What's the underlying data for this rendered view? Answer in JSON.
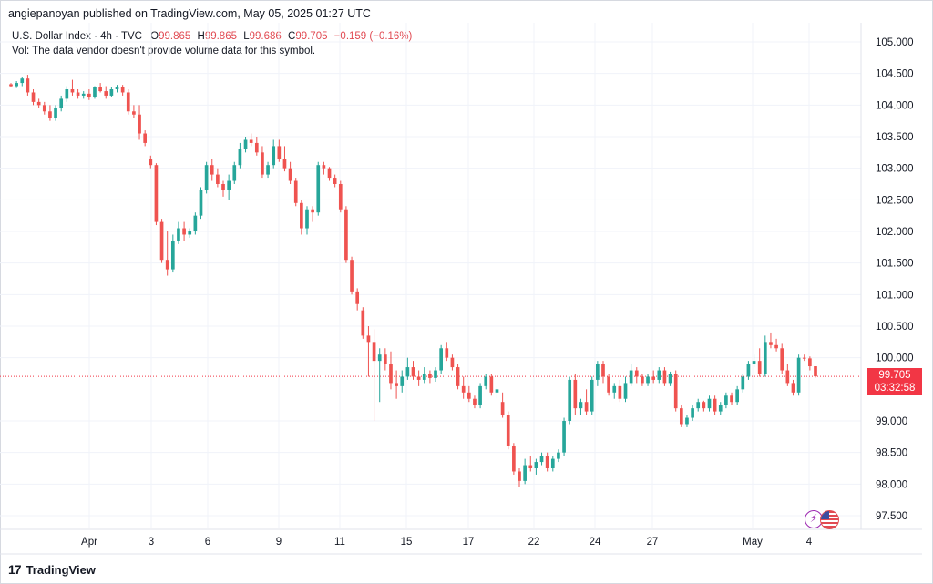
{
  "publisher_line": "angiepanoyan published on TradingView.com, May 05, 2025 01:27 UTC",
  "legend": {
    "symbol": "U.S. Dollar Index · 4h · TVC",
    "o_label": "O",
    "o_value": "99.865",
    "h_label": "H",
    "h_value": "99.865",
    "l_label": "L",
    "l_value": "99.686",
    "c_label": "C",
    "c_value": "99.705",
    "change": "−0.159 (−0.16%)",
    "vol_note": "Vol: The data vendor doesn't provide volume data for this symbol."
  },
  "price_tag": {
    "price": "99.705",
    "countdown": "03:32:58"
  },
  "footer": {
    "logo": "17",
    "brand": "TradingView"
  },
  "icons": [
    "lightning-event-icon",
    "us-flag-icon"
  ],
  "colors": {
    "up": "#26a69a",
    "down": "#ef5350",
    "grid": "#eef0f3",
    "price_line": "#f23645"
  },
  "chart_data": {
    "type": "candlestick",
    "timeframe": "4h",
    "y_axis_position": "right",
    "ylim": [
      97.4,
      105.2
    ],
    "y_ticks": [
      "105.000",
      "104.500",
      "104.000",
      "103.500",
      "103.000",
      "102.500",
      "102.000",
      "101.500",
      "101.000",
      "100.500",
      "100.000",
      "99.000",
      "98.500",
      "98.000",
      "97.500"
    ],
    "x_ticks": [
      "Apr",
      "3",
      "6",
      "9",
      "11",
      "15",
      "17",
      "22",
      "24",
      "27",
      "May",
      "4"
    ],
    "last_price": 99.705,
    "candles": [
      [
        104.33,
        104.35,
        104.28,
        104.3
      ],
      [
        104.3,
        104.38,
        104.27,
        104.35
      ],
      [
        104.35,
        104.45,
        104.3,
        104.42
      ],
      [
        104.42,
        104.48,
        104.15,
        104.2
      ],
      [
        104.2,
        104.25,
        104.0,
        104.05
      ],
      [
        104.05,
        104.1,
        103.95,
        104.0
      ],
      [
        104.0,
        104.05,
        103.85,
        103.9
      ],
      [
        103.9,
        104.0,
        103.75,
        103.8
      ],
      [
        103.8,
        104.0,
        103.75,
        103.95
      ],
      [
        103.95,
        104.15,
        103.9,
        104.1
      ],
      [
        104.1,
        104.3,
        104.05,
        104.25
      ],
      [
        104.25,
        104.4,
        104.15,
        104.2
      ],
      [
        104.2,
        104.25,
        104.1,
        104.15
      ],
      [
        104.15,
        104.22,
        104.1,
        104.18
      ],
      [
        104.18,
        104.25,
        104.08,
        104.12
      ],
      [
        104.12,
        104.3,
        104.1,
        104.28
      ],
      [
        104.28,
        104.35,
        104.2,
        104.22
      ],
      [
        104.22,
        104.3,
        104.1,
        104.15
      ],
      [
        104.15,
        104.28,
        104.12,
        104.25
      ],
      [
        104.25,
        104.32,
        104.2,
        104.28
      ],
      [
        104.28,
        104.32,
        104.15,
        104.2
      ],
      [
        104.2,
        104.25,
        103.85,
        103.9
      ],
      [
        103.9,
        104.0,
        103.8,
        103.85
      ],
      [
        103.85,
        104.0,
        103.45,
        103.55
      ],
      [
        103.55,
        103.6,
        103.35,
        103.4
      ],
      [
        103.15,
        103.2,
        103.0,
        103.05
      ],
      [
        103.05,
        103.08,
        102.1,
        102.15
      ],
      [
        102.15,
        102.2,
        101.5,
        101.55
      ],
      [
        101.55,
        102.0,
        101.3,
        101.4
      ],
      [
        101.4,
        101.95,
        101.35,
        101.85
      ],
      [
        101.85,
        102.15,
        101.8,
        102.05
      ],
      [
        102.05,
        102.15,
        101.85,
        101.95
      ],
      [
        101.95,
        102.05,
        101.9,
        102.0
      ],
      [
        102.0,
        102.3,
        101.95,
        102.25
      ],
      [
        102.25,
        102.7,
        102.2,
        102.65
      ],
      [
        102.65,
        103.1,
        102.6,
        103.05
      ],
      [
        103.05,
        103.15,
        102.8,
        102.9
      ],
      [
        102.9,
        103.0,
        102.7,
        102.75
      ],
      [
        102.75,
        102.8,
        102.55,
        102.65
      ],
      [
        102.65,
        102.9,
        102.5,
        102.8
      ],
      [
        102.8,
        103.1,
        102.75,
        103.05
      ],
      [
        103.05,
        103.4,
        103.0,
        103.3
      ],
      [
        103.3,
        103.5,
        103.25,
        103.45
      ],
      [
        103.45,
        103.55,
        103.35,
        103.4
      ],
      [
        103.4,
        103.5,
        103.2,
        103.25
      ],
      [
        103.25,
        103.35,
        102.85,
        102.9
      ],
      [
        102.9,
        103.1,
        102.85,
        103.05
      ],
      [
        103.05,
        103.45,
        103.0,
        103.35
      ],
      [
        103.35,
        103.45,
        103.1,
        103.15
      ],
      [
        103.15,
        103.35,
        102.95,
        103.0
      ],
      [
        103.0,
        103.1,
        102.75,
        102.8
      ],
      [
        102.8,
        102.85,
        102.4,
        102.45
      ],
      [
        102.45,
        102.5,
        101.95,
        102.05
      ],
      [
        102.05,
        102.4,
        101.95,
        102.35
      ],
      [
        102.35,
        102.4,
        102.15,
        102.3
      ],
      [
        102.3,
        103.1,
        102.25,
        103.05
      ],
      [
        103.05,
        103.1,
        102.9,
        103.0
      ],
      [
        103.0,
        103.02,
        102.8,
        102.85
      ],
      [
        102.85,
        102.9,
        102.7,
        102.75
      ],
      [
        102.75,
        102.8,
        102.3,
        102.35
      ],
      [
        102.35,
        102.4,
        101.5,
        101.55
      ],
      [
        101.55,
        101.6,
        101.0,
        101.05
      ],
      [
        101.05,
        101.1,
        100.75,
        100.85
      ],
      [
        100.75,
        100.8,
        100.3,
        100.35
      ],
      [
        100.35,
        100.5,
        99.7,
        100.25
      ],
      [
        100.25,
        100.45,
        99.0,
        99.95
      ],
      [
        99.95,
        100.15,
        99.3,
        100.05
      ],
      [
        100.05,
        100.15,
        99.8,
        99.9
      ],
      [
        99.9,
        100.1,
        99.5,
        99.6
      ],
      [
        99.6,
        99.8,
        99.35,
        99.55
      ],
      [
        99.55,
        99.8,
        99.45,
        99.7
      ],
      [
        99.7,
        100.0,
        99.65,
        99.85
      ],
      [
        99.85,
        99.95,
        99.65,
        99.7
      ],
      [
        99.7,
        99.8,
        99.55,
        99.65
      ],
      [
        99.65,
        99.85,
        99.6,
        99.75
      ],
      [
        99.75,
        99.8,
        99.6,
        99.68
      ],
      [
        99.68,
        99.85,
        99.62,
        99.8
      ],
      [
        99.8,
        100.2,
        99.75,
        100.15
      ],
      [
        100.15,
        100.25,
        99.95,
        100.0
      ],
      [
        100.0,
        100.05,
        99.8,
        99.85
      ],
      [
        99.85,
        99.9,
        99.5,
        99.55
      ],
      [
        99.55,
        99.7,
        99.35,
        99.45
      ],
      [
        99.45,
        99.55,
        99.3,
        99.35
      ],
      [
        99.35,
        99.4,
        99.2,
        99.25
      ],
      [
        99.25,
        99.6,
        99.2,
        99.55
      ],
      [
        99.55,
        99.75,
        99.5,
        99.7
      ],
      [
        99.7,
        99.75,
        99.4,
        99.45
      ],
      [
        99.45,
        99.55,
        99.35,
        99.5
      ],
      [
        99.3,
        99.45,
        99.05,
        99.1
      ],
      [
        99.1,
        99.15,
        98.55,
        98.6
      ],
      [
        98.6,
        98.65,
        98.15,
        98.2
      ],
      [
        98.2,
        98.25,
        97.95,
        98.05
      ],
      [
        98.05,
        98.4,
        98.0,
        98.3
      ],
      [
        98.3,
        98.45,
        98.2,
        98.25
      ],
      [
        98.25,
        98.4,
        98.15,
        98.35
      ],
      [
        98.35,
        98.5,
        98.3,
        98.45
      ],
      [
        98.45,
        98.5,
        98.2,
        98.25
      ],
      [
        98.25,
        98.45,
        98.2,
        98.4
      ],
      [
        98.4,
        98.55,
        98.35,
        98.5
      ],
      [
        98.5,
        99.05,
        98.45,
        99.0
      ],
      [
        99.0,
        99.7,
        98.95,
        99.65
      ],
      [
        99.65,
        99.75,
        99.1,
        99.2
      ],
      [
        99.2,
        99.35,
        99.1,
        99.3
      ],
      [
        99.3,
        99.5,
        99.1,
        99.15
      ],
      [
        99.15,
        99.7,
        99.1,
        99.65
      ],
      [
        99.65,
        99.95,
        99.55,
        99.9
      ],
      [
        99.9,
        99.95,
        99.6,
        99.7
      ],
      [
        99.7,
        99.75,
        99.4,
        99.45
      ],
      [
        99.45,
        99.6,
        99.35,
        99.55
      ],
      [
        99.55,
        99.65,
        99.3,
        99.35
      ],
      [
        99.35,
        99.7,
        99.3,
        99.6
      ],
      [
        99.6,
        99.9,
        99.55,
        99.8
      ],
      [
        99.8,
        99.85,
        99.6,
        99.7
      ],
      [
        99.7,
        99.75,
        99.55,
        99.6
      ],
      [
        99.6,
        99.75,
        99.55,
        99.7
      ],
      [
        99.7,
        99.8,
        99.6,
        99.65
      ],
      [
        99.65,
        99.85,
        99.6,
        99.8
      ],
      [
        99.8,
        99.85,
        99.55,
        99.6
      ],
      [
        99.6,
        99.78,
        99.55,
        99.75
      ],
      [
        99.75,
        99.8,
        99.15,
        99.2
      ],
      [
        99.2,
        99.25,
        98.9,
        98.95
      ],
      [
        98.95,
        99.1,
        98.9,
        99.05
      ],
      [
        99.05,
        99.25,
        99.0,
        99.2
      ],
      [
        99.2,
        99.35,
        99.15,
        99.3
      ],
      [
        99.3,
        99.32,
        99.15,
        99.2
      ],
      [
        99.2,
        99.4,
        99.15,
        99.35
      ],
      [
        99.35,
        99.4,
        99.1,
        99.15
      ],
      [
        99.15,
        99.3,
        99.1,
        99.25
      ],
      [
        99.25,
        99.45,
        99.2,
        99.4
      ],
      [
        99.4,
        99.45,
        99.25,
        99.3
      ],
      [
        99.3,
        99.55,
        99.25,
        99.5
      ],
      [
        99.5,
        99.75,
        99.45,
        99.7
      ],
      [
        99.7,
        99.95,
        99.65,
        99.9
      ],
      [
        99.9,
        100.05,
        99.85,
        99.95
      ],
      [
        99.95,
        100.15,
        99.7,
        99.75
      ],
      [
        99.75,
        100.35,
        99.7,
        100.25
      ],
      [
        100.25,
        100.4,
        100.15,
        100.2
      ],
      [
        100.2,
        100.3,
        100.1,
        100.15
      ],
      [
        100.15,
        100.22,
        99.75,
        99.8
      ],
      [
        99.8,
        99.9,
        99.55,
        99.6
      ],
      [
        99.6,
        99.65,
        99.4,
        99.45
      ],
      [
        99.45,
        100.05,
        99.4,
        100.0
      ],
      [
        100.0,
        100.05,
        99.95,
        99.99
      ],
      [
        99.99,
        100.02,
        99.8,
        99.865
      ],
      [
        99.865,
        99.865,
        99.686,
        99.705
      ]
    ]
  }
}
